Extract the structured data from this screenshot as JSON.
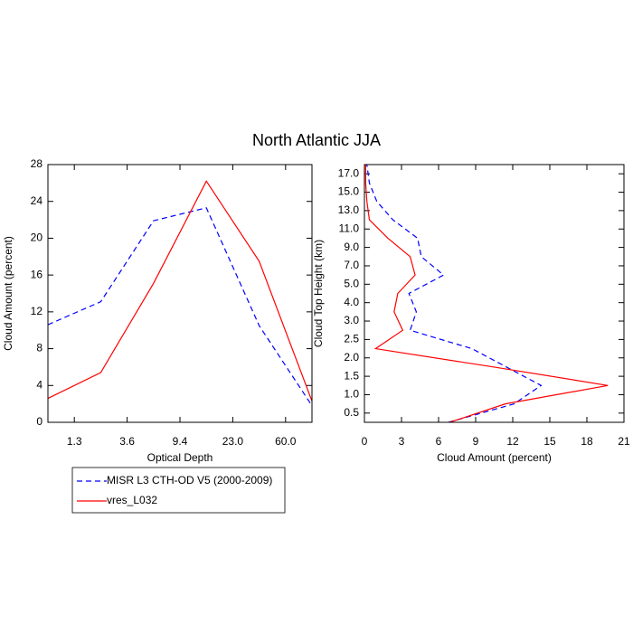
{
  "title": "North Atlantic JJA",
  "chart_data": [
    {
      "type": "line",
      "orientation": "vertical",
      "x_label": "Optical Depth",
      "y_label": "Cloud Amount (percent)",
      "x": [
        0,
        1,
        2,
        3,
        4,
        5
      ],
      "xlim": [
        0,
        5
      ],
      "xticks": [
        {
          "value": 0.5,
          "label": "1.3"
        },
        {
          "value": 1.5,
          "label": "3.6"
        },
        {
          "value": 2.5,
          "label": "9.4"
        },
        {
          "value": 3.5,
          "label": "23.0"
        },
        {
          "value": 4.5,
          "label": "60.0"
        }
      ],
      "ylim": [
        0,
        28
      ],
      "yticks": [
        0,
        4,
        8,
        12,
        16,
        20,
        24,
        28
      ],
      "series": [
        {
          "name": "MISR L3 CTH-OD V5 (2000-2009)",
          "color": "#0000ff",
          "dash": true,
          "values": [
            10.6,
            13.1,
            21.9,
            23.3,
            10.5,
            1.8
          ]
        },
        {
          "name": "vres_L032",
          "color": "#ff0000",
          "dash": false,
          "values": [
            2.6,
            5.4,
            15.1,
            26.2,
            17.5,
            2.3
          ]
        }
      ]
    },
    {
      "type": "line",
      "orientation": "horizontal",
      "x_label": "Cloud Amount (percent)",
      "y_label": "Cloud Top Height (km)",
      "y": [
        0,
        1,
        2,
        3,
        4,
        5,
        6,
        7,
        8,
        9,
        10,
        11,
        12,
        13,
        14
      ],
      "xlim": [
        0,
        21
      ],
      "xticks": [
        0,
        3,
        6,
        9,
        12,
        15,
        18,
        21
      ],
      "ylim": [
        0,
        14
      ],
      "yticks": [
        {
          "value": 0.5,
          "label": "0.5"
        },
        {
          "value": 1.5,
          "label": "1.0"
        },
        {
          "value": 2.5,
          "label": "1.5"
        },
        {
          "value": 3.5,
          "label": "2.0"
        },
        {
          "value": 4.5,
          "label": "2.5"
        },
        {
          "value": 5.5,
          "label": "3.0"
        },
        {
          "value": 6.5,
          "label": "4.0"
        },
        {
          "value": 7.5,
          "label": "5.0"
        },
        {
          "value": 8.5,
          "label": "7.0"
        },
        {
          "value": 9.5,
          "label": "9.0"
        },
        {
          "value": 10.5,
          "label": "11.0"
        },
        {
          "value": 11.5,
          "label": "13.0"
        },
        {
          "value": 12.5,
          "label": "15.0"
        },
        {
          "value": 13.5,
          "label": "17.0"
        }
      ],
      "series": [
        {
          "name": "MISR L3 CTH-OD V5 (2000-2009)",
          "color": "#0000ff",
          "dash": true,
          "values": [
            6.8,
            12.1,
            14.3,
            11.5,
            8.7,
            3.7,
            4.2,
            3.6,
            6.4,
            4.6,
            4.3,
            2.3,
            1.0,
            0.4,
            0.2
          ]
        },
        {
          "name": "vres_L032",
          "color": "#ff0000",
          "dash": false,
          "values": [
            6.9,
            11.4,
            19.7,
            10.5,
            0.9,
            3.1,
            2.4,
            2.7,
            4.1,
            3.7,
            1.9,
            0.4,
            0.2,
            0.1,
            0.1
          ]
        }
      ]
    }
  ]
}
